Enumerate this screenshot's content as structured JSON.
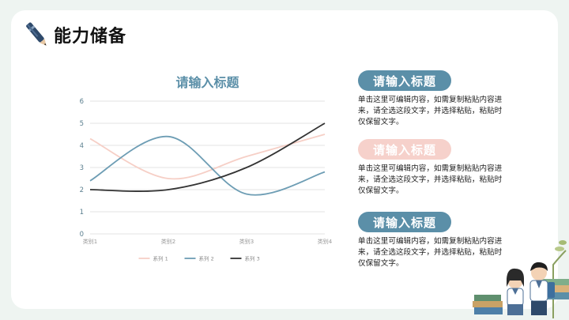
{
  "page": {
    "title": "能力储备"
  },
  "chart_data": {
    "type": "line",
    "title": "请输入标题",
    "categories": [
      "类别1",
      "类别2",
      "类别3",
      "类别4"
    ],
    "ylim": [
      0,
      6
    ],
    "yticks": [
      "0",
      "1",
      "2",
      "3",
      "4",
      "5",
      "6"
    ],
    "grid": true,
    "legend": "bottom",
    "series": [
      {
        "name": "系列 1",
        "values": [
          4.3,
          2.5,
          3.5,
          4.5
        ],
        "color": "#f6cfc6"
      },
      {
        "name": "系列 2",
        "values": [
          2.4,
          4.4,
          1.8,
          2.8
        ],
        "color": "#6d9db4"
      },
      {
        "name": "系列 3",
        "values": [
          2.0,
          2.0,
          3.0,
          5.0
        ],
        "color": "#333333"
      }
    ]
  },
  "cards": [
    {
      "heading": "请输入标题",
      "text": "单击这里可编辑内容，如需复制粘贴内容进来，请全选这段文字，并选择粘贴，粘贴时仅保留文字。",
      "style": "blue"
    },
    {
      "heading": "请输入标题",
      "text": "单击这里可编辑内容，如需复制粘贴内容进来，请全选这段文字，并选择粘贴，粘贴时仅保留文字。",
      "style": "pink"
    },
    {
      "heading": "请输入标题",
      "text": "单击这里可编辑内容，如需复制粘贴内容进来，请全选这段文字，并选择粘贴，粘贴时仅保留文字。",
      "style": "blue"
    }
  ],
  "colors": {
    "accent_blue": "#5b8fa8",
    "accent_pink": "#f6d1cb",
    "background": "#eef4f1"
  },
  "icons": {
    "title_icon": "pen-icon",
    "decoration": "students-with-books-illustration"
  }
}
